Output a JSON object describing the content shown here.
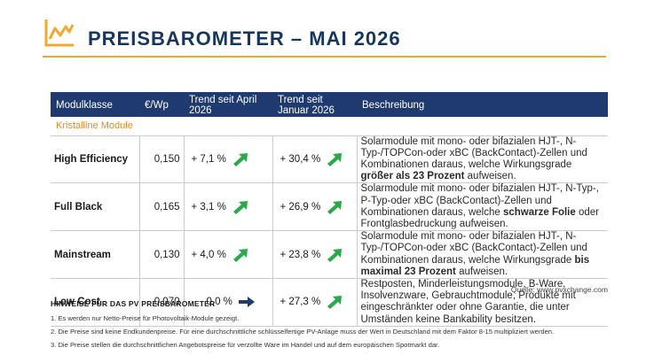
{
  "header": {
    "title": "PREISBAROMETER – MAI 2026",
    "accent_color": "#f0a830",
    "title_color": "#17365d"
  },
  "table": {
    "columns": [
      "Modulklasse",
      "€/Wp",
      "Trend seit April 2026",
      "Trend seit Januar 2026",
      "Beschreibung"
    ],
    "section_label": "Kristalline Module",
    "header_color": "#1f3a6e",
    "rows": [
      {
        "name": "High Efficiency",
        "price": "0,150",
        "trend_april": "+  7,1 %",
        "trend_april_icon": "arrow-up-right-icon",
        "trend_jan": "+ 30,4 %",
        "trend_jan_icon": "arrow-up-right-icon",
        "desc_a": "Solarmodule mit mono- oder bifazialen HJT-, N-Typ-/TOPCon-oder xBC (BackContact)-Zellen und Kombinationen daraus, welche Wirkungsgrade ",
        "desc_b": "größer als 23 Prozent",
        "desc_c": " aufweisen."
      },
      {
        "name": "Full Black",
        "price": "0,165",
        "trend_april": "+  3,1 %",
        "trend_april_icon": "arrow-up-right-icon",
        "trend_jan": "+ 26,9 %",
        "trend_jan_icon": "arrow-up-right-icon",
        "desc_a": "Solarmodule mit mono- oder bifazialen HJT-, N-Typ-, P-Typ-oder xBC (BackContact)-Zellen und Kombinationen daraus, welche ",
        "desc_b": "schwarze Folie",
        "desc_c": " oder Frontglasbedruckung aufweisen."
      },
      {
        "name": "Mainstream",
        "price": "0,130",
        "trend_april": "+ 4,0 %",
        "trend_april_icon": "arrow-up-right-icon",
        "trend_jan": "+ 23,8 %",
        "trend_jan_icon": "arrow-up-right-icon",
        "desc_a": "Solarmodule mit mono- oder bifazialen HJT-, N-Typ-/TOPCon-oder xBC (BackContact)-Zellen und Kombinationen daraus, welche Wirkungsgrade ",
        "desc_b": "bis maximal 23 Prozent",
        "desc_c": " aufweisen."
      },
      {
        "name": "Low Cost",
        "price": "0,070",
        "trend_april": "0,0 %",
        "trend_april_icon": "arrow-right-icon",
        "trend_jan": "+ 27,3 %",
        "trend_jan_icon": "arrow-up-right-icon",
        "desc_a": "Restposten, Minderleistungsmodule, B-Ware, Insolvenzware, Gebrauchtmodule, Produkte mit eingeschränkter oder ohne Garantie, die unter Umständen keine Bankability besitzen.",
        "desc_b": "",
        "desc_c": ""
      }
    ],
    "arrow_up_color": "#2aa84a",
    "arrow_flat_color": "#1f3a6e"
  },
  "source": "Quelle: www.pvxchange.com",
  "notes": {
    "title": "HINWEISE FÜR DAS PV PREISBAROMETER",
    "items": [
      "1.  Es werden nur Netto-Preise für Photovoltaik-Module gezeigt.",
      "2. Die Preise sind keine Endkundenpreise. Für eine durchschnittliche schlüsselfertige PV-Anlage muss der Wert in Deutschland mit dem Faktor 8-15 multipliziert werden.",
      "3. Die Preise stellen die durchschnittlichen Angebotspreise für verzollte Ware im Handel und auf dem europäischen Spotmarkt dar."
    ]
  }
}
